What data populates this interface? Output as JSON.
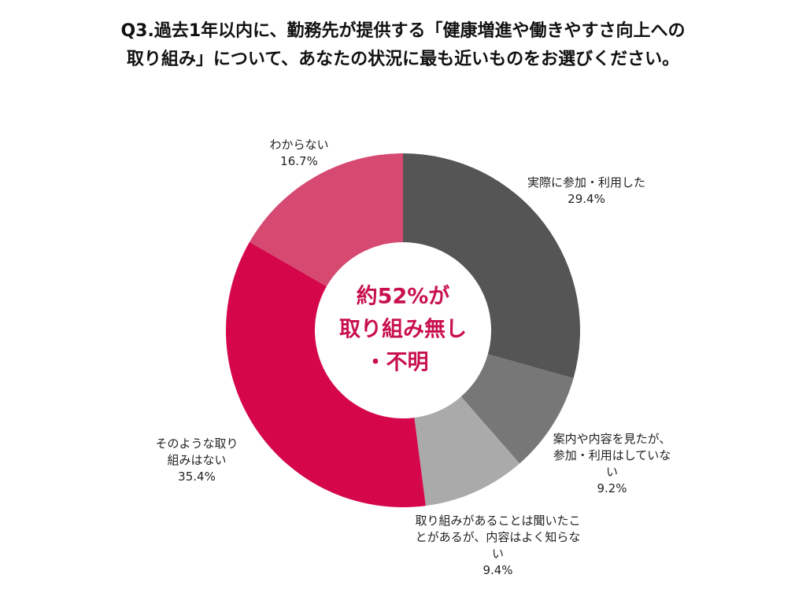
{
  "chart_data": {
    "type": "pie",
    "title": [
      "Q3.過去1年以内に、勤務先が提供する「健康増進や働きやすさ向上への",
      "取り組み」について、あなたの状況に最も近いものをお選びください。"
    ],
    "categories": [
      "実際に参加・利用した",
      "案内や内容を見たが、参加・利用はしていない",
      "取り組みがあることは聞いたことがあるが、内容はよく知らない",
      "そのような取り組みはない",
      "わからない"
    ],
    "values": [
      29.4,
      9.2,
      9.4,
      35.4,
      16.7
    ],
    "value_labels": [
      "29.4%",
      "9.2%",
      "9.4%",
      "35.4%",
      "16.7%"
    ],
    "colors": [
      "#555555",
      "#777777",
      "#aaaaaa",
      "#d5064a",
      "#d64a72"
    ],
    "center_text": [
      "約52%が",
      "取り組み無し",
      "・不明"
    ],
    "center_color": "#c8104f"
  }
}
